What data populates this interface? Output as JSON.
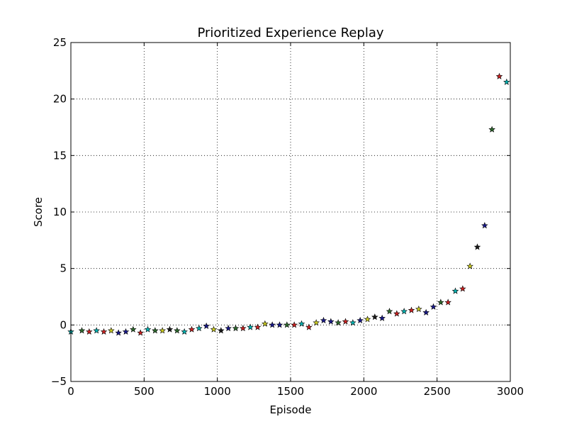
{
  "chart_data": {
    "type": "scatter",
    "title": "Prioritized Experience Replay",
    "xlabel": "Episode",
    "ylabel": "Score",
    "xlim": [
      0,
      3000
    ],
    "ylim": [
      -5,
      25
    ],
    "xticks": [
      "0",
      "500",
      "1000",
      "1500",
      "2000",
      "2500",
      "3000"
    ],
    "yticks": [
      "25",
      "20",
      "15",
      "10",
      "5",
      "0",
      "−5"
    ],
    "grid": true,
    "marker": "star",
    "series": [
      {
        "points": [
          [
            0,
            -0.6,
            "#00b3b3"
          ],
          [
            75,
            -0.5,
            "#2e6b2e"
          ],
          [
            125,
            -0.6,
            "#cc2222"
          ],
          [
            175,
            -0.5,
            "#00b3b3"
          ],
          [
            225,
            -0.6,
            "#cc2222"
          ],
          [
            275,
            -0.5,
            "#cccc22"
          ],
          [
            325,
            -0.7,
            "#1a1a8c"
          ],
          [
            375,
            -0.6,
            "#1a1a8c"
          ],
          [
            425,
            -0.4,
            "#2e6b2e"
          ],
          [
            475,
            -0.7,
            "#cc2222"
          ],
          [
            525,
            -0.4,
            "#00b3b3"
          ],
          [
            575,
            -0.5,
            "#2e6b2e"
          ],
          [
            625,
            -0.5,
            "#cccc22"
          ],
          [
            675,
            -0.4,
            "#1a1a1a"
          ],
          [
            725,
            -0.5,
            "#2e6b2e"
          ],
          [
            775,
            -0.6,
            "#00b3b3"
          ],
          [
            825,
            -0.4,
            "#cc2222"
          ],
          [
            875,
            -0.3,
            "#00b3b3"
          ],
          [
            925,
            -0.1,
            "#1a1a8c"
          ],
          [
            975,
            -0.4,
            "#cccc22"
          ],
          [
            1025,
            -0.5,
            "#1a1a1a"
          ],
          [
            1075,
            -0.3,
            "#1a1a8c"
          ],
          [
            1125,
            -0.3,
            "#2e6b2e"
          ],
          [
            1175,
            -0.3,
            "#cc2222"
          ],
          [
            1225,
            -0.2,
            "#00b3b3"
          ],
          [
            1275,
            -0.2,
            "#cc2222"
          ],
          [
            1325,
            0.1,
            "#cccc22"
          ],
          [
            1375,
            0.0,
            "#1a1a8c"
          ],
          [
            1425,
            0.0,
            "#1a1a8c"
          ],
          [
            1475,
            0.0,
            "#2e6b2e"
          ],
          [
            1525,
            0.0,
            "#cc2222"
          ],
          [
            1575,
            0.1,
            "#00b3b3"
          ],
          [
            1625,
            -0.2,
            "#cc2222"
          ],
          [
            1675,
            0.2,
            "#cccc22"
          ],
          [
            1725,
            0.4,
            "#1a1a8c"
          ],
          [
            1775,
            0.3,
            "#1a1a8c"
          ],
          [
            1825,
            0.2,
            "#2e6b2e"
          ],
          [
            1875,
            0.3,
            "#cc2222"
          ],
          [
            1925,
            0.2,
            "#00b3b3"
          ],
          [
            1975,
            0.4,
            "#1a1a8c"
          ],
          [
            2025,
            0.5,
            "#cccc22"
          ],
          [
            2075,
            0.7,
            "#1a1a1a"
          ],
          [
            2125,
            0.6,
            "#1a1a8c"
          ],
          [
            2175,
            1.2,
            "#2e6b2e"
          ],
          [
            2225,
            1.0,
            "#cc2222"
          ],
          [
            2275,
            1.2,
            "#00b3b3"
          ],
          [
            2325,
            1.3,
            "#cc2222"
          ],
          [
            2375,
            1.4,
            "#cccc22"
          ],
          [
            2425,
            1.1,
            "#1a1a8c"
          ],
          [
            2475,
            1.6,
            "#1a1a8c"
          ],
          [
            2525,
            2.0,
            "#2e6b2e"
          ],
          [
            2575,
            2.0,
            "#cc2222"
          ],
          [
            2625,
            3.0,
            "#00b3b3"
          ],
          [
            2675,
            3.2,
            "#cc2222"
          ],
          [
            2725,
            5.2,
            "#cccc22"
          ],
          [
            2775,
            6.9,
            "#1a1a1a"
          ],
          [
            2825,
            8.8,
            "#1a1a8c"
          ],
          [
            2875,
            17.3,
            "#2e6b2e"
          ],
          [
            2925,
            22.0,
            "#cc2222"
          ],
          [
            2975,
            21.5,
            "#00b3b3"
          ]
        ]
      }
    ]
  }
}
